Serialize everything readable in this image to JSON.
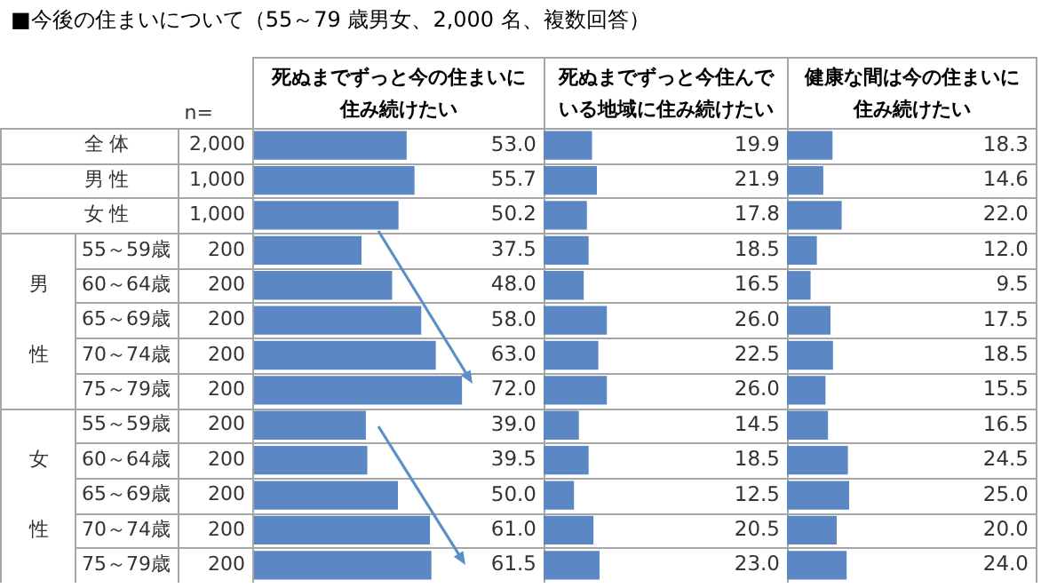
{
  "chart_data": [
    {
      "type": "bar",
      "orientation": "horizontal",
      "title": "■今後の住まいについて（55～79 歳男女、2,000 名、複数回答）",
      "subtitle": "死ぬまでずっと今の住まいに住み続けたい",
      "categories": [
        "全 体",
        "男 性",
        "女 性",
        "55～59歳",
        "60～64歳",
        "65～69歳",
        "70～74歳",
        "75～79歳",
        "55～59歳",
        "60～64歳",
        "65～69歳",
        "70～74歳",
        "75～79歳"
      ],
      "annotations": [
        "n=",
        "2,000",
        "1,000",
        "1,000",
        "200",
        "200",
        "200",
        "200",
        "200",
        "200",
        "200",
        "200",
        "200",
        "200",
        "男",
        "性",
        "女",
        "性"
      ],
      "color": "#5b87c5",
      "values": [
        53.0,
        55.7,
        50.2,
        37.5,
        48.0,
        58.0,
        63.0,
        72.0,
        39.0,
        39.5,
        50.0,
        61.0,
        61.5
      ],
      "value_labels": [
        "53.0",
        "55.7",
        "50.2",
        "37.5",
        "48.0",
        "58.0",
        "63.0",
        "72.0",
        "39.0",
        "39.5",
        "50.0",
        "61.0",
        "61.5"
      ],
      "xlim": [
        0,
        100
      ],
      "tick_labels": "y",
      "grid": "y",
      "legend": false
    },
    {
      "type": "bar",
      "orientation": "horizontal",
      "subtitle": "死ぬまでずっと今住んでいる地域に住み続けたい",
      "categories": [
        null,
        null,
        null,
        null,
        null,
        null,
        null,
        null,
        null,
        null,
        null,
        null,
        null
      ],
      "color": "#5b87c5",
      "values": [
        19.9,
        21.9,
        17.8,
        18.5,
        16.5,
        26.0,
        22.5,
        26.0,
        14.5,
        18.5,
        12.5,
        20.5,
        23.0
      ],
      "value_labels": [
        "19.9",
        "21.9",
        "17.8",
        "18.5",
        "16.5",
        "26.0",
        "22.5",
        "26.0",
        "14.5",
        "18.5",
        "12.5",
        "20.5",
        "23.0"
      ],
      "xlim": [
        0,
        100
      ],
      "tick_labels": false,
      "grid": "y",
      "legend": false
    },
    {
      "type": "bar",
      "orientation": "horizontal",
      "subtitle": "健康な間は今の住まいに住み続けたい",
      "categories": [
        null,
        null,
        null,
        null,
        null,
        null,
        null,
        null,
        null,
        null,
        null,
        null,
        null
      ],
      "color": "#5b87c5",
      "values": [
        18.3,
        14.6,
        22.0,
        12.0,
        9.5,
        17.5,
        18.5,
        15.5,
        16.5,
        24.5,
        25.0,
        20.0,
        24.0
      ],
      "value_labels": [
        "18.3",
        "14.6",
        "22.0",
        "12.0",
        "9.5",
        "17.5",
        "18.5",
        "15.5",
        "16.5",
        "24.5",
        "25.0",
        "20.0",
        "24.0"
      ],
      "xlim": [
        0,
        100
      ],
      "tick_labels": false,
      "grid": "y",
      "legend": false
    }
  ]
}
